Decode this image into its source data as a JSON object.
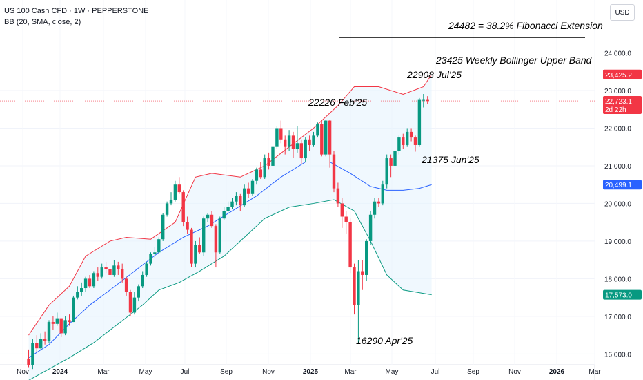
{
  "header": {
    "symbol": "US 100 Cash CFD · 1W · PEPPERSTONE",
    "indicator": "BB (20, SMA, close, 2)",
    "currency": "USD"
  },
  "colors": {
    "up": "#089981",
    "down": "#f23645",
    "upper_band": "#f23645",
    "basis": "#2962ff",
    "lower_band": "#089981",
    "band_fill": "#e3f2fd",
    "annotation": "#000000"
  },
  "chart_data": {
    "type": "candlestick",
    "x_axis": {
      "ticks": [
        "Nov",
        "2024",
        "Mar",
        "May",
        "Jul",
        "Sep",
        "Nov",
        "2025",
        "Mar",
        "May",
        "Jul",
        "Sep",
        "Nov",
        "2026",
        "Mar"
      ],
      "bold": [
        "2024",
        "2025",
        "2026"
      ]
    },
    "y_axis": {
      "range": [
        15750,
        25000
      ],
      "ticks": [
        "16,000.0",
        "17,000.0",
        "18,000.0",
        "19,000.0",
        "20,000.0",
        "21,000.0",
        "22,000.0",
        "23,000.0",
        "24,000.0"
      ],
      "tick_values": [
        16000,
        17000,
        18000,
        19000,
        20000,
        21000,
        22000,
        23000,
        24000
      ]
    },
    "price_tags": [
      {
        "label": "23,425.2",
        "value": 23425.2,
        "color": "#f23645"
      },
      {
        "label": "22,723.1",
        "sub": "2d 22h",
        "value": 22723.1,
        "color": "#f23645"
      },
      {
        "label": "20,499.1",
        "value": 20499.1,
        "color": "#2962ff"
      },
      {
        "label": "17,573.0",
        "value": 17573.0,
        "color": "#089981"
      }
    ],
    "current_price": 22723.1,
    "candles": [
      [
        15880,
        15700,
        16120,
        15650
      ],
      [
        15700,
        16300,
        16400,
        15600
      ],
      [
        16300,
        16150,
        16500,
        16050
      ],
      [
        16150,
        16400,
        16550,
        16100
      ],
      [
        16400,
        16350,
        16600,
        16250
      ],
      [
        16350,
        16850,
        16900,
        16300
      ],
      [
        16850,
        16800,
        17000,
        16650
      ],
      [
        16800,
        16950,
        17100,
        16750
      ],
      [
        16950,
        16550,
        16950,
        16450
      ],
      [
        16550,
        16900,
        17000,
        16500
      ],
      [
        16900,
        16850,
        17050,
        16750
      ],
      [
        16850,
        17500,
        17550,
        16850
      ],
      [
        17500,
        17650,
        17800,
        17450
      ],
      [
        17650,
        17750,
        17900,
        17550
      ],
      [
        17750,
        18000,
        18050,
        17650
      ],
      [
        18000,
        17800,
        18100,
        17750
      ],
      [
        17800,
        18150,
        18200,
        17750
      ],
      [
        18150,
        18050,
        18300,
        17950
      ],
      [
        18050,
        18300,
        18400,
        18000
      ],
      [
        18300,
        18250,
        18450,
        18150
      ],
      [
        18250,
        18100,
        18450,
        18000
      ],
      [
        18100,
        18350,
        18500,
        18050
      ],
      [
        18350,
        18250,
        18450,
        18100
      ],
      [
        18250,
        18000,
        18400,
        17900
      ],
      [
        18000,
        17650,
        18050,
        17550
      ],
      [
        17650,
        17100,
        17700,
        17000
      ],
      [
        17100,
        17500,
        17650,
        17050
      ],
      [
        17500,
        17800,
        17850,
        17400
      ],
      [
        17800,
        18100,
        18200,
        17750
      ],
      [
        18100,
        18400,
        18450,
        18050
      ],
      [
        18400,
        18650,
        18700,
        18350
      ],
      [
        18650,
        18700,
        18850,
        18550
      ],
      [
        18700,
        19050,
        19100,
        18650
      ],
      [
        19050,
        19700,
        19750,
        19000
      ],
      [
        19700,
        20000,
        20050,
        19650
      ],
      [
        20000,
        20100,
        20300,
        19950
      ],
      [
        20100,
        20500,
        20600,
        20050
      ],
      [
        20500,
        20300,
        20700,
        20250
      ],
      [
        20300,
        19500,
        20350,
        19400
      ],
      [
        19500,
        19300,
        19650,
        19200
      ],
      [
        19300,
        18400,
        19350,
        18300
      ],
      [
        18400,
        18900,
        19000,
        18300
      ],
      [
        18900,
        18700,
        19100,
        18650
      ],
      [
        18700,
        19600,
        19650,
        18600
      ],
      [
        19600,
        19700,
        19750,
        19500
      ],
      [
        19700,
        19400,
        19800,
        19350
      ],
      [
        19400,
        18700,
        19450,
        18300
      ],
      [
        18700,
        19600,
        19650,
        18650
      ],
      [
        19600,
        19800,
        19900,
        19550
      ],
      [
        19800,
        19900,
        20050,
        19750
      ],
      [
        19900,
        20050,
        20150,
        19850
      ],
      [
        20050,
        20200,
        20300,
        19950
      ],
      [
        20200,
        19950,
        20250,
        19800
      ],
      [
        19950,
        20400,
        20500,
        19900
      ],
      [
        20400,
        20250,
        20550,
        20150
      ],
      [
        20250,
        20600,
        20650,
        20200
      ],
      [
        20600,
        20900,
        20950,
        20500
      ],
      [
        20900,
        20700,
        21100,
        20650
      ],
      [
        20700,
        21200,
        21300,
        20650
      ],
      [
        21200,
        21000,
        21350,
        20900
      ],
      [
        21000,
        21500,
        21550,
        20950
      ],
      [
        21500,
        22000,
        22050,
        21450
      ],
      [
        22000,
        21700,
        22200,
        21600
      ],
      [
        21700,
        21500,
        21800,
        21300
      ],
      [
        21500,
        21800,
        21950,
        21400
      ],
      [
        21800,
        21450,
        21900,
        21200
      ],
      [
        21450,
        21600,
        22050,
        21350
      ],
      [
        21600,
        21200,
        21700,
        21050
      ],
      [
        21200,
        21700,
        21750,
        21100
      ],
      [
        21700,
        21550,
        21800,
        21400
      ],
      [
        21550,
        21800,
        21900,
        21500
      ],
      [
        21800,
        22100,
        22150,
        21750
      ],
      [
        22100,
        21300,
        22200,
        21250
      ],
      [
        21300,
        22200,
        22226,
        21250
      ],
      [
        22200,
        21300,
        22226,
        20950
      ],
      [
        21300,
        20400,
        21400,
        20300
      ],
      [
        20400,
        20000,
        20550,
        19900
      ],
      [
        20000,
        19650,
        20150,
        19350
      ],
      [
        19650,
        19500,
        19800,
        19200
      ],
      [
        19500,
        18300,
        19600,
        18150
      ],
      [
        18300,
        17300,
        18400,
        17050
      ],
      [
        17300,
        18200,
        18500,
        16290
      ],
      [
        18200,
        18100,
        18500,
        17700
      ],
      [
        18100,
        19000,
        19050,
        17950
      ],
      [
        19000,
        19700,
        19800,
        18900
      ],
      [
        19700,
        20050,
        20150,
        19600
      ],
      [
        20050,
        20000,
        20150,
        19900
      ],
      [
        20000,
        20500,
        20600,
        19950
      ],
      [
        20500,
        21200,
        21300,
        20400
      ],
      [
        21200,
        21000,
        21300,
        20700
      ],
      [
        21000,
        21400,
        21450,
        20900
      ],
      [
        21400,
        21750,
        21800,
        21300
      ],
      [
        21750,
        21550,
        21850,
        21450
      ],
      [
        21550,
        21900,
        22000,
        21500
      ],
      [
        21900,
        21750,
        22000,
        21650
      ],
      [
        21750,
        21550,
        21800,
        21375
      ],
      [
        21550,
        22750,
        22800,
        21500
      ],
      [
        22750,
        22750,
        22908,
        22550
      ],
      [
        22750,
        22723,
        22850,
        22650
      ]
    ],
    "upper_band": [
      [
        0,
        16500
      ],
      [
        5,
        17300
      ],
      [
        10,
        17800
      ],
      [
        14,
        18600
      ],
      [
        20,
        19000
      ],
      [
        24,
        19100
      ],
      [
        30,
        19050
      ],
      [
        36,
        19500
      ],
      [
        41,
        20700
      ],
      [
        45,
        20800
      ],
      [
        52,
        20700
      ],
      [
        58,
        21000
      ],
      [
        64,
        21500
      ],
      [
        70,
        22000
      ],
      [
        76,
        22600
      ],
      [
        80,
        23100
      ],
      [
        86,
        23100
      ],
      [
        92,
        22900
      ],
      [
        97,
        23100
      ],
      [
        99,
        23425
      ]
    ],
    "basis": [
      [
        0,
        15900
      ],
      [
        5,
        16250
      ],
      [
        10,
        16800
      ],
      [
        15,
        17300
      ],
      [
        20,
        17700
      ],
      [
        26,
        18200
      ],
      [
        32,
        18700
      ],
      [
        38,
        19100
      ],
      [
        44,
        19400
      ],
      [
        50,
        19800
      ],
      [
        56,
        20200
      ],
      [
        62,
        20700
      ],
      [
        68,
        21100
      ],
      [
        74,
        21100
      ],
      [
        79,
        20800
      ],
      [
        84,
        20450
      ],
      [
        88,
        20350
      ],
      [
        92,
        20350
      ],
      [
        96,
        20400
      ],
      [
        99,
        20499
      ]
    ],
    "lower_band": [
      [
        0,
        15300
      ],
      [
        5,
        15600
      ],
      [
        10,
        15900
      ],
      [
        16,
        16300
      ],
      [
        22,
        16800
      ],
      [
        28,
        17300
      ],
      [
        32,
        17700
      ],
      [
        37,
        17900
      ],
      [
        42,
        18200
      ],
      [
        48,
        18600
      ],
      [
        53,
        19100
      ],
      [
        58,
        19600
      ],
      [
        64,
        19900
      ],
      [
        70,
        20000
      ],
      [
        75,
        20100
      ],
      [
        80,
        19800
      ],
      [
        84,
        19000
      ],
      [
        88,
        18100
      ],
      [
        92,
        17700
      ],
      [
        99,
        17573
      ]
    ],
    "annotations": [
      {
        "text": "24482 = 38.2% Fibonacci Extension",
        "value": 24482
      },
      {
        "text": "23425 Weekly Bollinger Upper Band",
        "value": 23425
      },
      {
        "text": "22908 Jul'25",
        "value": 22908
      },
      {
        "text": "22226 Feb'25",
        "value": 22226
      },
      {
        "text": "21375 Jun'25",
        "value": 21375
      },
      {
        "text": "16290 Apr'25",
        "value": 16290
      }
    ]
  }
}
